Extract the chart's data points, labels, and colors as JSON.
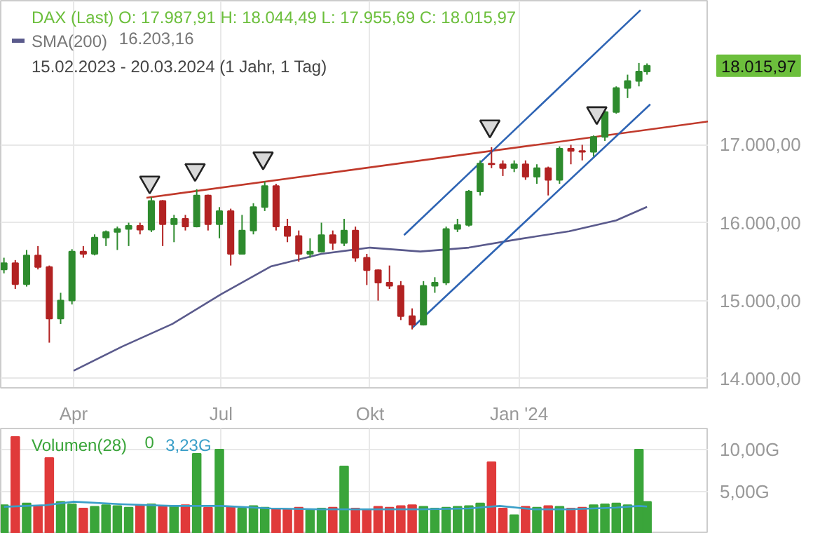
{
  "chart_data": [
    {
      "type": "candlestick",
      "x": [
        "2023-02-17",
        "2023-02-24",
        "2023-03-03",
        "2023-03-10",
        "2023-03-17",
        "2023-03-24",
        "2023-03-31",
        "2023-04-07",
        "2023-04-14",
        "2023-04-21",
        "2023-04-28",
        "2023-05-05",
        "2023-05-12",
        "2023-05-19",
        "2023-05-26",
        "2023-06-02",
        "2023-06-09",
        "2023-06-16",
        "2023-06-23",
        "2023-06-30",
        "2023-07-07",
        "2023-07-14",
        "2023-07-21",
        "2023-07-28",
        "2023-08-04",
        "2023-08-11",
        "2023-08-18",
        "2023-08-25",
        "2023-09-01",
        "2023-09-08",
        "2023-09-15",
        "2023-09-22",
        "2023-09-29",
        "2023-10-06",
        "2023-10-13",
        "2023-10-20",
        "2023-10-27",
        "2023-11-03",
        "2023-11-10",
        "2023-11-17",
        "2023-11-24",
        "2023-12-01",
        "2023-12-08",
        "2023-12-15",
        "2023-12-22",
        "2023-12-29",
        "2024-01-05",
        "2024-01-12",
        "2024-01-19",
        "2024-01-26",
        "2024-02-02",
        "2024-02-09",
        "2024-02-16",
        "2024-02-23",
        "2024-03-01",
        "2024-03-08",
        "2024-03-15",
        "2024-03-20"
      ],
      "ohlc": [
        [
          15400,
          15550,
          15350,
          15480
        ],
        [
          15480,
          15520,
          15150,
          15210
        ],
        [
          15210,
          15650,
          15180,
          15580
        ],
        [
          15580,
          15700,
          15400,
          15430
        ],
        [
          15430,
          15450,
          14460,
          14770
        ],
        [
          14770,
          15100,
          14700,
          15000
        ],
        [
          15000,
          15660,
          14950,
          15630
        ],
        [
          15630,
          15700,
          15550,
          15600
        ],
        [
          15600,
          15850,
          15580,
          15810
        ],
        [
          15810,
          15900,
          15700,
          15880
        ],
        [
          15880,
          15950,
          15650,
          15920
        ],
        [
          15920,
          16000,
          15700,
          15960
        ],
        [
          15960,
          16000,
          15850,
          15910
        ],
        [
          15910,
          16330,
          15880,
          16280
        ],
        [
          16280,
          16290,
          15700,
          15980
        ],
        [
          15980,
          16100,
          15750,
          16050
        ],
        [
          16050,
          16100,
          15900,
          15950
        ],
        [
          15950,
          16430,
          15940,
          16350
        ],
        [
          16350,
          16360,
          15900,
          15980
        ],
        [
          15980,
          16200,
          15800,
          16150
        ],
        [
          16150,
          16180,
          15450,
          15600
        ],
        [
          15600,
          16100,
          15600,
          15900
        ],
        [
          15900,
          16250,
          15850,
          16200
        ],
        [
          16200,
          16530,
          16150,
          16470
        ],
        [
          16470,
          16500,
          15900,
          15950
        ],
        [
          15950,
          16050,
          15750,
          15830
        ],
        [
          15830,
          15900,
          15500,
          15600
        ],
        [
          15600,
          15800,
          15550,
          15630
        ],
        [
          15630,
          16000,
          15620,
          15840
        ],
        [
          15840,
          15900,
          15650,
          15740
        ],
        [
          15740,
          16050,
          15700,
          15900
        ],
        [
          15900,
          15950,
          15500,
          15550
        ],
        [
          15550,
          15600,
          15200,
          15390
        ],
        [
          15390,
          15400,
          15000,
          15230
        ],
        [
          15230,
          15450,
          15150,
          15190
        ],
        [
          15190,
          15250,
          14750,
          14800
        ],
        [
          14800,
          14900,
          14630,
          14690
        ],
        [
          14690,
          15250,
          14680,
          15190
        ],
        [
          15190,
          15300,
          15100,
          15230
        ],
        [
          15230,
          15950,
          15200,
          15920
        ],
        [
          15920,
          16050,
          15880,
          15970
        ],
        [
          15970,
          16420,
          15950,
          16400
        ],
        [
          16400,
          16800,
          16350,
          16760
        ],
        [
          16760,
          16970,
          16700,
          16750
        ],
        [
          16750,
          16800,
          16600,
          16700
        ],
        [
          16700,
          16800,
          16650,
          16750
        ],
        [
          16750,
          16800,
          16550,
          16590
        ],
        [
          16590,
          16750,
          16500,
          16700
        ],
        [
          16700,
          16720,
          16350,
          16550
        ],
        [
          16550,
          16980,
          16500,
          16950
        ],
        [
          16950,
          17000,
          16750,
          16920
        ],
        [
          16920,
          17000,
          16800,
          16910
        ],
        [
          16910,
          17120,
          16850,
          17100
        ],
        [
          17100,
          17450,
          17050,
          17420
        ],
        [
          17420,
          17750,
          17400,
          17730
        ],
        [
          17730,
          17900,
          17600,
          17820
        ],
        [
          17820,
          18050,
          17750,
          17940
        ],
        [
          17940,
          18044.49,
          17900,
          18015.97
        ]
      ],
      "series": [
        {
          "name": "SMA(200)",
          "type": "line",
          "color": "#5a5a8c",
          "x": [
            "2023-04-01",
            "2023-05-01",
            "2023-06-01",
            "2023-07-01",
            "2023-08-01",
            "2023-09-01",
            "2023-10-01",
            "2023-11-01",
            "2023-12-01",
            "2024-01-01",
            "2024-02-01",
            "2024-03-01",
            "2024-03-20"
          ],
          "values": [
            14100,
            14410,
            14700,
            15080,
            15440,
            15600,
            15680,
            15630,
            15680,
            15790,
            15890,
            16030,
            16203.16
          ]
        },
        {
          "type": "line",
          "color": "#c0392b",
          "x": [
            "2023-05-16",
            "2024-04-27"
          ],
          "values": [
            16320,
            17300
          ]
        },
        {
          "type": "line",
          "color": "#2e64b4",
          "x": [
            "2023-10-22",
            "2024-03-16"
          ],
          "values": [
            15840,
            18730
          ]
        },
        {
          "type": "line",
          "color": "#2e64b4",
          "x": [
            "2023-10-27",
            "2024-03-22"
          ],
          "values": [
            14650,
            17520
          ]
        },
        {
          "type": "scatter",
          "marker": "triangle",
          "color": "#d9d9d9",
          "x": [
            "2023-05-18",
            "2023-06-15",
            "2023-07-27",
            "2023-12-14",
            "2024-02-18"
          ],
          "values": [
            16520,
            16680,
            16830,
            17240,
            17410
          ]
        }
      ],
      "xlim": [
        "2023-02-15",
        "2024-04-27"
      ],
      "xticks": [
        {
          "value": "2023-04-01",
          "label": "Apr"
        },
        {
          "value": "2023-07-01",
          "label": "Jul"
        },
        {
          "value": "2023-10-01",
          "label": "Okt"
        },
        {
          "value": "2024-01-01",
          "label": "Jan '24"
        }
      ],
      "ylim": [
        13880,
        18850
      ],
      "yticks": [
        {
          "value": 14000,
          "label": "14.000,00"
        },
        {
          "value": 15000,
          "label": "15.000,00"
        },
        {
          "value": 16000,
          "label": "16.000,00"
        },
        {
          "value": 17000,
          "label": "17.000,00"
        }
      ],
      "grid": true,
      "annotations": [
        "DAX (Last)  O: 17.987,91  H: 18.044,49  L: 17.955,69  C: 18.015,97",
        "16.203,16",
        "15.02.2023 - 20.03.2024  (1 Jahr, 1 Tag)",
        "18.015,97"
      ]
    },
    {
      "type": "bar",
      "x": [
        "2023-02-17",
        "2023-02-24",
        "2023-03-03",
        "2023-03-10",
        "2023-03-17",
        "2023-03-24",
        "2023-03-31",
        "2023-04-07",
        "2023-04-14",
        "2023-04-21",
        "2023-04-28",
        "2023-05-05",
        "2023-05-12",
        "2023-05-19",
        "2023-05-26",
        "2023-06-02",
        "2023-06-09",
        "2023-06-16",
        "2023-06-23",
        "2023-06-30",
        "2023-07-07",
        "2023-07-14",
        "2023-07-21",
        "2023-07-28",
        "2023-08-04",
        "2023-08-11",
        "2023-08-18",
        "2023-08-25",
        "2023-09-01",
        "2023-09-08",
        "2023-09-15",
        "2023-09-22",
        "2023-09-29",
        "2023-10-06",
        "2023-10-13",
        "2023-10-20",
        "2023-10-27",
        "2023-11-03",
        "2023-11-10",
        "2023-11-17",
        "2023-11-24",
        "2023-12-01",
        "2023-12-08",
        "2023-12-15",
        "2023-12-22",
        "2023-12-29",
        "2024-01-05",
        "2024-01-12",
        "2024-01-19",
        "2024-01-26",
        "2024-02-02",
        "2024-02-09",
        "2024-02-16",
        "2024-02-23",
        "2024-03-01",
        "2024-03-08",
        "2024-03-15",
        "2024-03-20"
      ],
      "series": [
        {
          "name": "Volumen(28)",
          "type": "bar",
          "color": "#3aa53a",
          "colors": [
            "#3aa53a",
            "#e03a3a",
            "#3aa53a",
            "#e03a3a",
            "#e03a3a",
            "#3aa53a",
            "#3aa53a",
            "#e03a3a",
            "#3aa53a",
            "#3aa53a",
            "#3aa53a",
            "#3aa53a",
            "#e03a3a",
            "#3aa53a",
            "#e03a3a",
            "#3aa53a",
            "#e03a3a",
            "#3aa53a",
            "#e03a3a",
            "#3aa53a",
            "#e03a3a",
            "#3aa53a",
            "#3aa53a",
            "#3aa53a",
            "#e03a3a",
            "#e03a3a",
            "#e03a3a",
            "#3aa53a",
            "#3aa53a",
            "#e03a3a",
            "#3aa53a",
            "#e03a3a",
            "#e03a3a",
            "#e03a3a",
            "#e03a3a",
            "#e03a3a",
            "#e03a3a",
            "#3aa53a",
            "#3aa53a",
            "#3aa53a",
            "#3aa53a",
            "#3aa53a",
            "#3aa53a",
            "#e03a3a",
            "#e03a3a",
            "#3aa53a",
            "#e03a3a",
            "#3aa53a",
            "#e03a3a",
            "#3aa53a",
            "#e03a3a",
            "#e03a3a",
            "#3aa53a",
            "#3aa53a",
            "#3aa53a",
            "#3aa53a",
            "#3aa53a",
            "#3aa53a"
          ],
          "values": [
            3.4,
            11.5,
            3.6,
            3.3,
            9.0,
            3.8,
            3.5,
            3.0,
            3.2,
            3.4,
            3.3,
            3.1,
            3.4,
            3.5,
            3.2,
            3.3,
            3.4,
            9.5,
            3.1,
            10.0,
            3.2,
            3.0,
            3.3,
            3.1,
            3.0,
            2.9,
            3.1,
            2.8,
            3.0,
            3.1,
            8.0,
            3.0,
            2.9,
            3.2,
            3.1,
            3.3,
            3.4,
            3.2,
            3.0,
            3.1,
            3.2,
            3.3,
            3.6,
            8.5,
            3.0,
            2.2,
            3.2,
            3.1,
            3.3,
            3.2,
            3.0,
            3.1,
            3.4,
            3.5,
            3.6,
            3.4,
            10.0,
            3.8
          ]
        },
        {
          "type": "line",
          "color": "#3a9fc8",
          "x": [
            "2023-02-17",
            "2023-03-15",
            "2023-04-01",
            "2023-05-01",
            "2023-06-01",
            "2023-07-01",
            "2023-08-01",
            "2023-09-01",
            "2023-10-01",
            "2023-11-01",
            "2023-12-01",
            "2023-12-20",
            "2024-01-10",
            "2024-02-01",
            "2024-03-01",
            "2024-03-15",
            "2024-03-20"
          ],
          "values": [
            3.2,
            3.4,
            3.8,
            3.5,
            3.3,
            3.3,
            3.0,
            2.9,
            2.9,
            2.9,
            3.0,
            3.3,
            2.9,
            2.9,
            3.1,
            3.3,
            3.23
          ]
        }
      ],
      "xlim": [
        "2023-02-15",
        "2024-04-27"
      ],
      "xticks": [
        {
          "value": "2023-04-01",
          "label": null
        },
        {
          "value": "2023-07-01",
          "label": null
        },
        {
          "value": "2023-10-01",
          "label": null
        },
        {
          "value": "2024-01-01",
          "label": null
        }
      ],
      "ylim": [
        0,
        12.5
      ],
      "yticks": [
        {
          "value": 5,
          "label": "5,00G"
        },
        {
          "value": 10,
          "label": "10,00G"
        }
      ],
      "grid": true,
      "tick_labels": "y",
      "annotations": [
        "0",
        "3,23G"
      ]
    }
  ]
}
